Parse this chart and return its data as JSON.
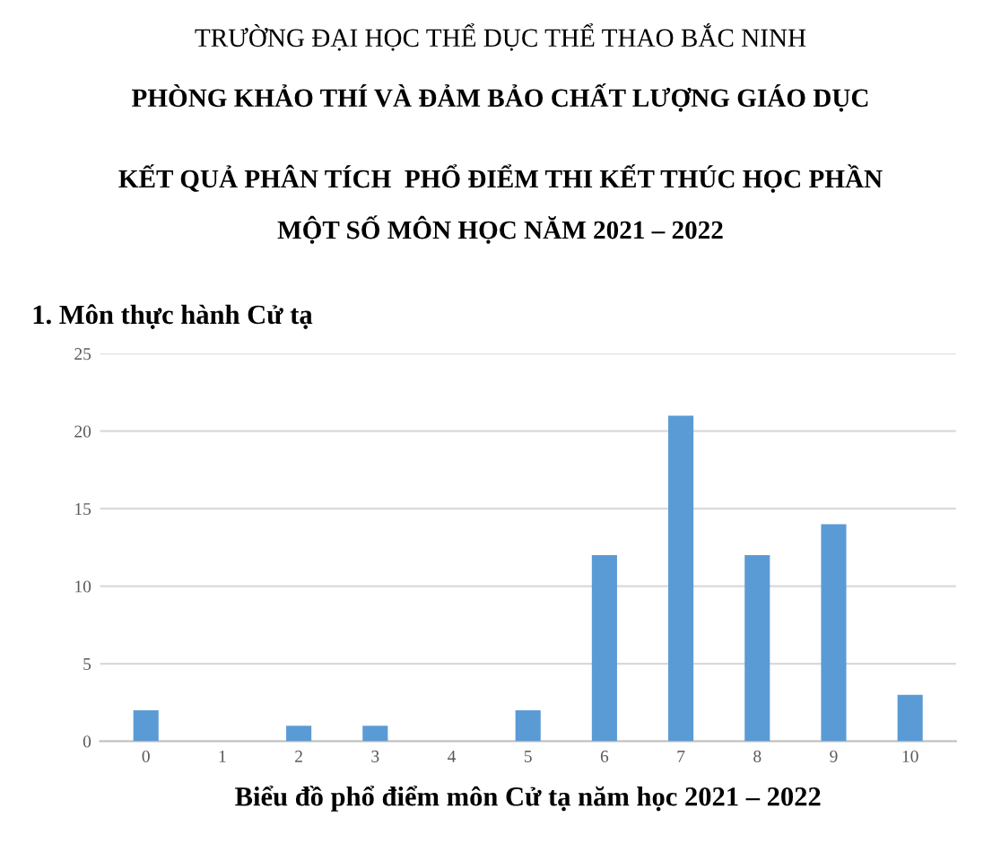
{
  "chart_data": {
    "type": "bar",
    "title": "1. Môn thực hành Cử tạ",
    "xlabel": "Biểu đồ phổ điểm môn Cử tạ năm học 2021 – 2022",
    "annotations": [
      "TRƯỜNG ĐẠI HỌC THỂ DỤC THỂ THAO BẮC NINH",
      "PHÒNG KHẢO THÍ VÀ ĐẢM BẢO CHẤT LƯỢNG GIÁO DỤC",
      "KẾT QUẢ PHÂN TÍCH  PHỔ ĐIỂM THI KẾT THÚC HỌC PHẦN",
      "MỘT SỐ MÔN HỌC NĂM 2021 – 2022"
    ],
    "categories": [
      "0",
      "1",
      "2",
      "3",
      "4",
      "5",
      "6",
      "7",
      "8",
      "9",
      "10"
    ],
    "values": [
      2,
      0,
      1,
      1,
      0,
      2,
      12,
      21,
      12,
      14,
      3
    ],
    "color": "#5b9bd5",
    "ylim": [
      0,
      25
    ],
    "yticks": [
      0,
      5,
      10,
      15,
      20,
      25
    ],
    "grid": "y"
  }
}
